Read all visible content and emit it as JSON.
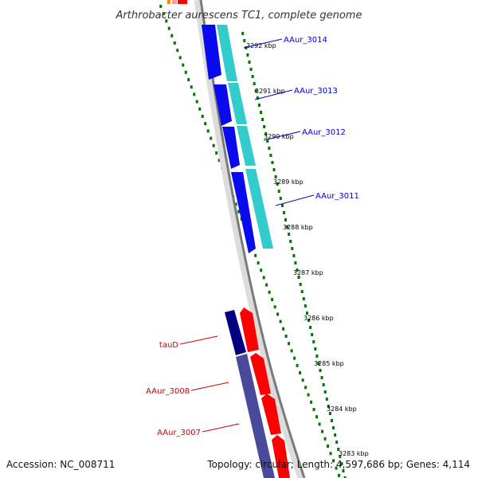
{
  "title": "Arthrobacter aurescens TC1, complete genome",
  "footer": {
    "accession": "Accession: NC_008711",
    "summary": "Topology: circular; Length: 4,597,686 bp; Genes: 4,114"
  },
  "ticks": [
    {
      "label": "3292 kbp"
    },
    {
      "label": "3291 kbp"
    },
    {
      "label": "3290 kbp"
    },
    {
      "label": "3289 kbp"
    },
    {
      "label": "3288 kbp"
    },
    {
      "label": "3287 kbp"
    },
    {
      "label": "3286 kbp"
    },
    {
      "label": "3285 kbp"
    },
    {
      "label": "3284 kbp"
    },
    {
      "label": "3283 kbp"
    }
  ],
  "gene_labels_right": [
    {
      "label": "AAur_3014"
    },
    {
      "label": "AAur_3013"
    },
    {
      "label": "AAur_3012"
    },
    {
      "label": "AAur_3011"
    }
  ],
  "gene_labels_left": [
    {
      "label": "tauD"
    },
    {
      "label": "AAur_3008"
    },
    {
      "label": "AAur_3007"
    }
  ],
  "colors": {
    "reverse_gene": "#0a0af0",
    "reverse_cds": "#33cccc",
    "forward_gene": "#ff0000",
    "forward_cds_dark": "#000080",
    "forward_cds": "#4a4a9a",
    "backbone": "#7a7a7a",
    "tick_dash": "#007700",
    "right_label": "#0000cc",
    "left_label": "#cc0000"
  }
}
